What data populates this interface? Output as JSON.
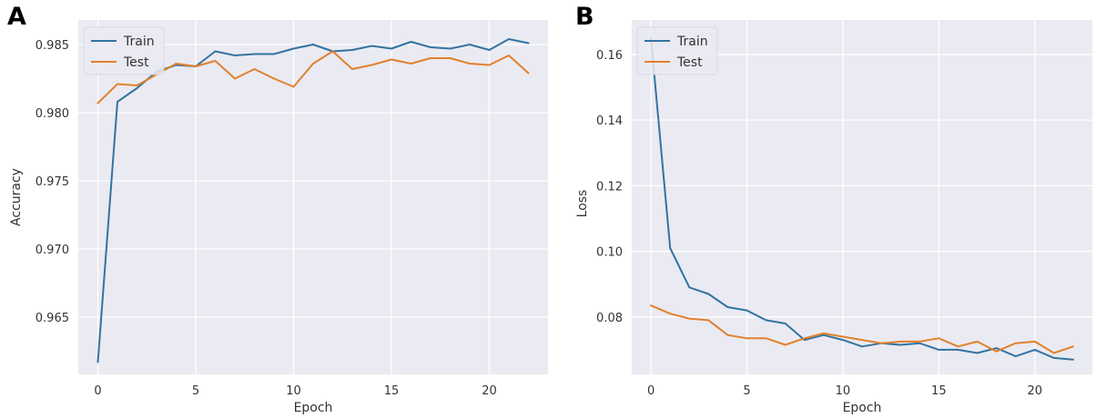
{
  "chart_data": [
    {
      "panel": "A",
      "type": "line",
      "xlabel": "Epoch",
      "ylabel": "Accuracy",
      "xlim": [
        -1,
        23
      ],
      "ylim": [
        0.9608,
        0.9868
      ],
      "xticks": [
        0,
        5,
        10,
        15,
        20
      ],
      "yticks": [
        0.965,
        0.97,
        0.975,
        0.98,
        0.985
      ],
      "ytick_labels": [
        "0.965",
        "0.970",
        "0.975",
        "0.980",
        "0.985"
      ],
      "grid": true,
      "legend_position": "top-left",
      "x": [
        0,
        1,
        2,
        3,
        4,
        5,
        6,
        7,
        8,
        9,
        10,
        11,
        12,
        13,
        14,
        15,
        16,
        17,
        18,
        19,
        20,
        21,
        22
      ],
      "series": [
        {
          "name": "Train",
          "color": "#3274a1",
          "values": [
            0.9617,
            0.9808,
            0.9818,
            0.983,
            0.9835,
            0.9834,
            0.9845,
            0.9842,
            0.9843,
            0.9843,
            0.9847,
            0.985,
            0.9845,
            0.9846,
            0.9849,
            0.9847,
            0.9852,
            0.9848,
            0.9847,
            0.985,
            0.9846,
            0.9854,
            0.9851
          ]
        },
        {
          "name": "Test",
          "color": "#e1812c",
          "values": [
            0.9807,
            0.9821,
            0.982,
            0.9828,
            0.9836,
            0.9834,
            0.9838,
            0.9825,
            0.9832,
            0.9825,
            0.9819,
            0.9836,
            0.9845,
            0.9832,
            0.9835,
            0.9839,
            0.9836,
            0.984,
            0.984,
            0.9836,
            0.9835,
            0.9842,
            0.9829
          ]
        }
      ]
    },
    {
      "panel": "B",
      "type": "line",
      "xlabel": "Epoch",
      "ylabel": "Loss",
      "xlim": [
        -1,
        23
      ],
      "ylim": [
        0.0625,
        0.1705
      ],
      "xticks": [
        0,
        5,
        10,
        15,
        20
      ],
      "yticks": [
        0.08,
        0.1,
        0.12,
        0.14,
        0.16
      ],
      "ytick_labels": [
        "0.08",
        "0.10",
        "0.12",
        "0.14",
        "0.16"
      ],
      "grid": true,
      "legend_position": "top-left",
      "x": [
        0,
        1,
        2,
        3,
        4,
        5,
        6,
        7,
        8,
        9,
        10,
        11,
        12,
        13,
        14,
        15,
        16,
        17,
        18,
        19,
        20,
        21,
        22
      ],
      "series": [
        {
          "name": "Train",
          "color": "#3274a1",
          "values": [
            0.165,
            0.101,
            0.089,
            0.087,
            0.083,
            0.082,
            0.079,
            0.078,
            0.073,
            0.0745,
            0.073,
            0.071,
            0.072,
            0.0715,
            0.072,
            0.07,
            0.07,
            0.069,
            0.0705,
            0.068,
            0.07,
            0.0675,
            0.067
          ]
        },
        {
          "name": "Test",
          "color": "#e1812c",
          "values": [
            0.0835,
            0.081,
            0.0795,
            0.079,
            0.0745,
            0.0735,
            0.0735,
            0.0715,
            0.0735,
            0.075,
            0.074,
            0.073,
            0.072,
            0.0725,
            0.0725,
            0.0735,
            0.071,
            0.0725,
            0.0695,
            0.072,
            0.0725,
            0.069,
            0.071
          ]
        }
      ]
    }
  ],
  "panel_letters": [
    "A",
    "B"
  ],
  "colors": {
    "plot_bg": "#eaeaf2",
    "grid": "#ffffff",
    "train": "#3274a1",
    "test": "#e1812c"
  }
}
